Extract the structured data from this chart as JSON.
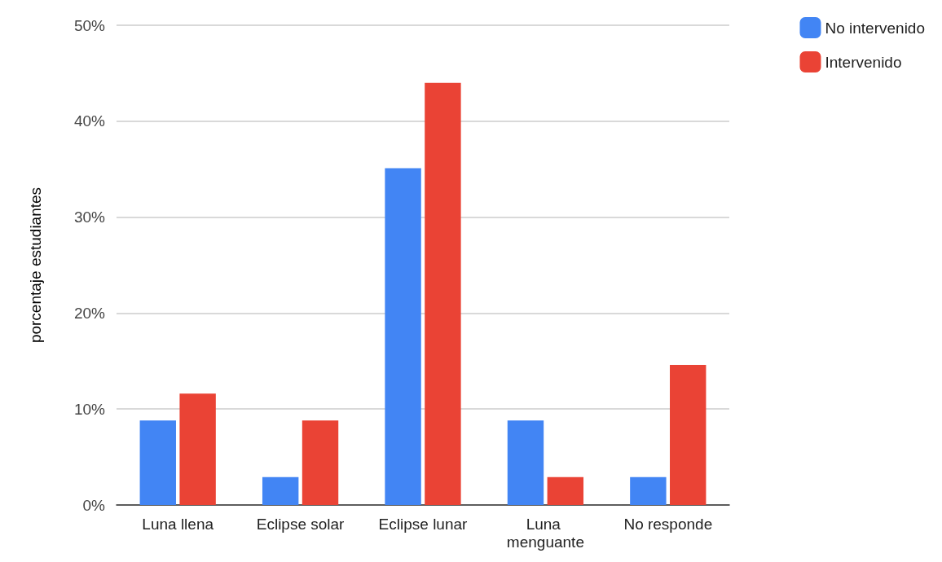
{
  "chart_data": {
    "type": "bar",
    "ylabel": "porcentaje estudiantes",
    "categories": [
      "Luna llena",
      "Eclipse solar",
      "Eclipse lunar",
      "Luna menguante",
      "No responde"
    ],
    "series": [
      {
        "name": "No intervenido",
        "color": "#4285f4",
        "values": [
          8.8,
          2.9,
          35.1,
          8.8,
          2.9
        ]
      },
      {
        "name": "Intervenido",
        "color": "#ea4335",
        "values": [
          11.6,
          8.8,
          44.0,
          2.9,
          14.6
        ]
      }
    ],
    "ylim": [
      0,
      50
    ],
    "yticks": [
      {
        "value": 0,
        "label": "0%"
      },
      {
        "value": 10,
        "label": "10%"
      },
      {
        "value": 20,
        "label": "20%"
      },
      {
        "value": 30,
        "label": "30%"
      },
      {
        "value": 40,
        "label": "40%"
      },
      {
        "value": 50,
        "label": "50%"
      }
    ],
    "grid": "y",
    "legend": "top right"
  }
}
